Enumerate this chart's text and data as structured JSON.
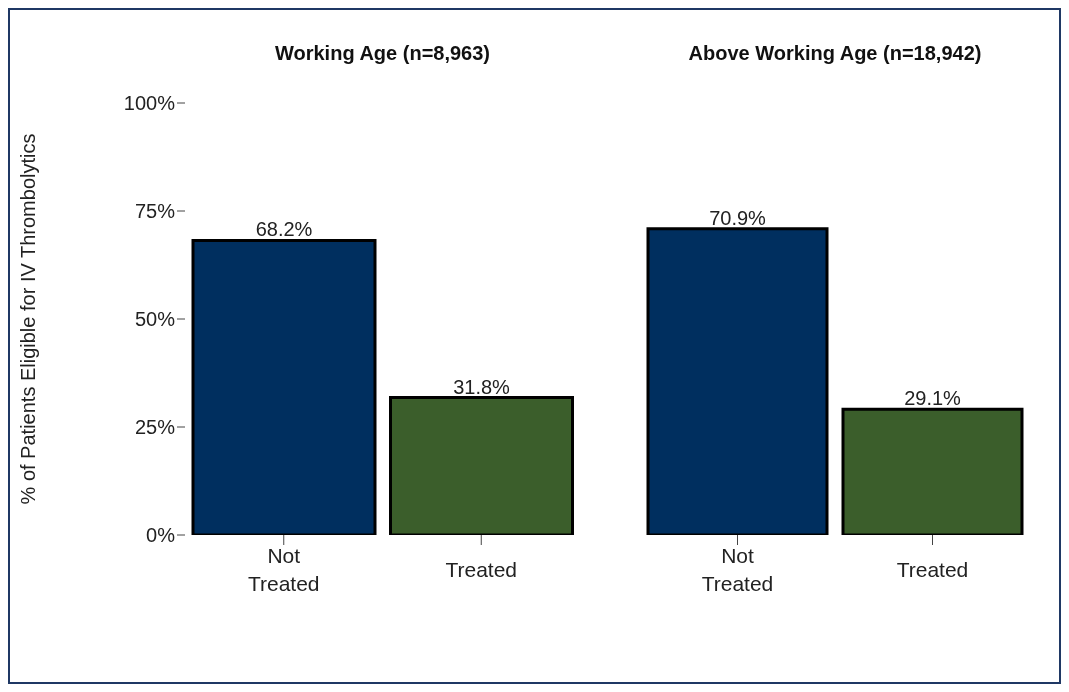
{
  "chart_data": [
    {
      "type": "bar",
      "title": "Working Age (n=8,963)",
      "ylabel": "% of Patients Eligible for IV Thrombolytics",
      "categories": [
        "Not Treated",
        "Treated"
      ],
      "values": [
        68.2,
        31.8
      ],
      "colors": [
        "#002f5f",
        "#3b5e2b"
      ],
      "value_labels": [
        "68.2%",
        "31.8%"
      ],
      "ylim": [
        0,
        100
      ],
      "yticks": [
        {
          "value": 0,
          "label": "0%"
        },
        {
          "value": 25,
          "label": "25%"
        },
        {
          "value": 50,
          "label": "50%"
        },
        {
          "value": 75,
          "label": "75%"
        },
        {
          "value": 100,
          "label": "100%"
        }
      ]
    },
    {
      "type": "bar",
      "title": "Above Working Age (n=18,942)",
      "categories": [
        "Not Treated",
        "Treated"
      ],
      "values": [
        70.9,
        29.1
      ],
      "colors": [
        "#002f5f",
        "#3b5e2b"
      ],
      "value_labels": [
        "70.9%",
        "29.1%"
      ],
      "ylim": [
        0,
        100
      ],
      "tick_labels": "x"
    }
  ]
}
